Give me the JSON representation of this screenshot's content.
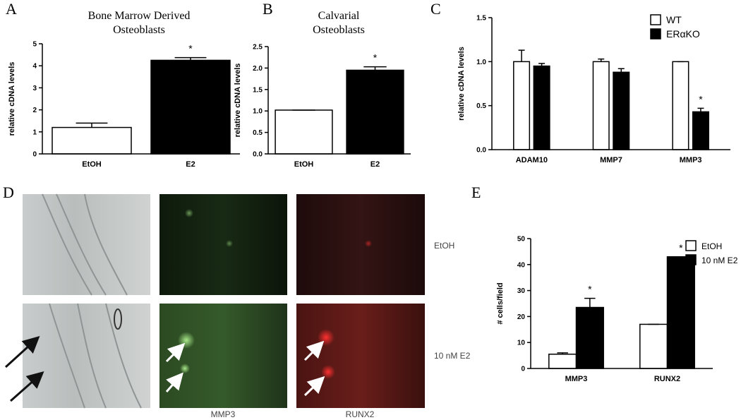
{
  "chart_data": [
    {
      "type": "bar",
      "panel_label": "A",
      "title": [
        "Bone Marrow Derived",
        "Osteoblasts"
      ],
      "y_label": "relative cDNA levels",
      "categories": [
        "EtOH",
        "E2"
      ],
      "values": [
        1.2,
        4.25
      ],
      "errors": [
        0.2,
        0.12
      ],
      "colors": [
        "#ffffff",
        "#000000"
      ],
      "ylim": [
        0,
        5
      ],
      "yticks": [
        0,
        1,
        2,
        3,
        4,
        5
      ],
      "annotations": [
        {
          "text": "*",
          "category": "E2"
        }
      ]
    },
    {
      "type": "bar",
      "panel_label": "B",
      "title": [
        "Calvarial",
        "Osteoblasts"
      ],
      "y_label": "relative cDNA levels",
      "categories": [
        "EtOH",
        "E2"
      ],
      "values": [
        1.02,
        1.95
      ],
      "errors": [
        0,
        0.08
      ],
      "colors": [
        "#ffffff",
        "#000000"
      ],
      "ylim": [
        0,
        2.5
      ],
      "yticks": [
        {
          "value": 0,
          "label": "0.0"
        },
        0.5,
        {
          "value": 1,
          "label": "1.0"
        },
        1.5,
        {
          "value": 2,
          "label": "2.0"
        },
        2.5
      ],
      "annotations": [
        {
          "text": "*",
          "category": "E2"
        }
      ]
    },
    {
      "type": "grouped-bar",
      "panel_label": "C",
      "y_label": "relative cDNA levels",
      "categories": [
        "ADAM10",
        "MMP7",
        "MMP3"
      ],
      "series": [
        {
          "name": "WT",
          "color": "#ffffff",
          "values": [
            1.0,
            1.0,
            1.0
          ],
          "errors": [
            0.13,
            0.03,
            0
          ]
        },
        {
          "name": "ERαKO",
          "color": "#000000",
          "values": [
            0.95,
            0.88,
            0.43
          ],
          "errors": [
            0.03,
            0.04,
            0.04
          ]
        }
      ],
      "ylim": [
        0,
        1.5
      ],
      "yticks": [
        {
          "value": 0,
          "label": "0.0"
        },
        0.5,
        {
          "value": 1,
          "label": "1.0"
        },
        1.5
      ],
      "legend": "top-right",
      "annotations": [
        {
          "text": "*",
          "category": "MMP3",
          "series": "ERαKO"
        }
      ]
    },
    {
      "type": "grouped-bar",
      "panel_label": "E",
      "y_label": "# cells/field",
      "categories": [
        "MMP3",
        "RUNX2"
      ],
      "series": [
        {
          "name": "EtOH",
          "color": "#ffffff",
          "values": [
            5.5,
            17
          ],
          "errors": [
            0.5,
            0
          ]
        },
        {
          "name": "10 nM E2",
          "color": "#000000",
          "values": [
            23.5,
            43
          ],
          "errors": [
            3.5,
            0
          ]
        }
      ],
      "ylim": [
        0,
        50
      ],
      "yticks": [
        0,
        10,
        20,
        30,
        40,
        50
      ],
      "legend": "top-right",
      "annotations": [
        {
          "text": "*",
          "category": "MMP3",
          "series": "10 nM E2"
        },
        {
          "text": "*",
          "category": "RUNX2",
          "series": "10 nM E2"
        }
      ]
    }
  ],
  "panel_d": {
    "label": "D",
    "row_labels": [
      "EtOH",
      "10 nM E2"
    ],
    "column_labels": [
      "MMP3",
      "RUNX2"
    ]
  }
}
